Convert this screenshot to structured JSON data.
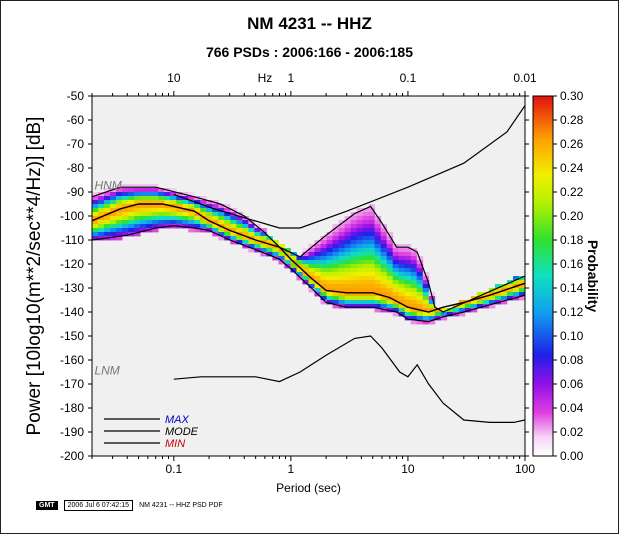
{
  "header": {
    "title": "NM 4231 -- HHZ",
    "subtitle": "766 PSDs : 2006:166 - 2006:185"
  },
  "footer": {
    "logo": "GMT",
    "timestamp": "2006 Jul  6 07:42:15",
    "caption": "NM 4231 -- HHZ PSD PDF"
  },
  "chart_data": {
    "type": "heatmap",
    "title": "NM 4231 -- HHZ",
    "subtitle": "766 PSDs : 2006:166 - 2006:185",
    "xlabel": "Period (sec)",
    "ylabel": "Power [10log10(m**2/sec**4/Hz)] [dB]",
    "xscale": "log",
    "xlim": [
      0.02,
      100
    ],
    "ylim": [
      -200,
      -50
    ],
    "x_ticks": [
      0.1,
      1,
      10,
      100
    ],
    "x_tick_labels": [
      "0.1",
      "1",
      "10",
      "100"
    ],
    "y_ticks": [
      -200,
      -190,
      -180,
      -170,
      -160,
      -150,
      -140,
      -130,
      -120,
      -110,
      -100,
      -90,
      -80,
      -70,
      -60,
      -50
    ],
    "top_axis_label": "Hz",
    "top_ticks": [
      10,
      1,
      0.1,
      0.01
    ],
    "top_tick_labels": [
      "10",
      "1",
      "0.1",
      "0.01"
    ],
    "colorbar": {
      "label": "Probability",
      "range": [
        0,
        0.3
      ],
      "ticks": [
        0.0,
        0.02,
        0.04,
        0.06,
        0.08,
        0.1,
        0.12,
        0.14,
        0.16,
        0.18,
        0.2,
        0.22,
        0.24,
        0.26,
        0.28,
        0.3
      ],
      "tick_labels": [
        "0.00",
        "0.02",
        "0.04",
        "0.06",
        "0.08",
        "0.10",
        "0.12",
        "0.14",
        "0.16",
        "0.18",
        "0.20",
        "0.22",
        "0.24",
        "0.26",
        "0.28",
        "0.30"
      ]
    },
    "legend": {
      "placement": "bottom-left",
      "entries": [
        {
          "name": "MAX",
          "color": "#0000cc"
        },
        {
          "name": "MODE",
          "color": "#000000"
        },
        {
          "name": "MIN",
          "color": "#cc0000"
        }
      ]
    },
    "annotations": [
      "HNM",
      "LNM"
    ],
    "series": [
      {
        "name": "HNM",
        "color": "#000000",
        "x": [
          0.1,
          0.22,
          0.8,
          1.2,
          3,
          10,
          30,
          70,
          100
        ],
        "y": [
          -91,
          -97,
          -105,
          -105,
          -98,
          -88,
          -78,
          -65,
          -54
        ]
      },
      {
        "name": "LNM",
        "color": "#000000",
        "x": [
          0.1,
          0.17,
          0.5,
          0.8,
          1.2,
          2,
          3.5,
          4.8,
          6,
          8.5,
          10,
          12,
          15,
          20,
          30,
          50,
          80,
          100
        ],
        "y": [
          -168,
          -167,
          -167,
          -169,
          -165,
          -158,
          -151,
          -150,
          -155,
          -165,
          -167,
          -162,
          -170,
          -178,
          -185,
          -186,
          -186,
          -185
        ]
      },
      {
        "name": "MAX",
        "color": "#000000",
        "x": [
          0.02,
          0.035,
          0.07,
          0.15,
          0.25,
          0.4,
          0.6,
          0.8,
          1.2,
          2,
          3.5,
          4.8,
          6,
          8,
          10,
          12,
          15,
          17,
          20,
          100
        ],
        "y": [
          -92,
          -88,
          -88,
          -92,
          -95,
          -100,
          -107,
          -113,
          -117,
          -108,
          -99,
          -96,
          -103,
          -113,
          -113,
          -115,
          -128,
          -138,
          -140,
          -125
        ]
      },
      {
        "name": "MODE",
        "color": "#000000",
        "x": [
          0.02,
          0.025,
          0.035,
          0.05,
          0.08,
          0.1,
          0.15,
          0.2,
          0.3,
          0.5,
          0.8,
          1,
          1.5,
          2,
          3,
          5,
          7,
          10,
          15,
          20,
          30,
          50,
          100
        ],
        "y": [
          -102,
          -100,
          -97,
          -95,
          -95,
          -96,
          -98,
          -102,
          -106,
          -110,
          -113,
          -118,
          -126,
          -131,
          -132,
          -132,
          -134,
          -138,
          -140,
          -138,
          -136,
          -133,
          -128
        ]
      },
      {
        "name": "MIN",
        "color": "#000000",
        "x": [
          0.02,
          0.04,
          0.07,
          0.1,
          0.15,
          0.2,
          0.3,
          0.5,
          0.8,
          1,
          1.5,
          2,
          3,
          5,
          8,
          10,
          15,
          20,
          30,
          50,
          100
        ],
        "y": [
          -110,
          -108,
          -105,
          -104,
          -105,
          -106,
          -110,
          -114,
          -118,
          -122,
          -130,
          -136,
          -138,
          -138,
          -140,
          -143,
          -144,
          -142,
          -140,
          -137,
          -133
        ]
      }
    ]
  }
}
